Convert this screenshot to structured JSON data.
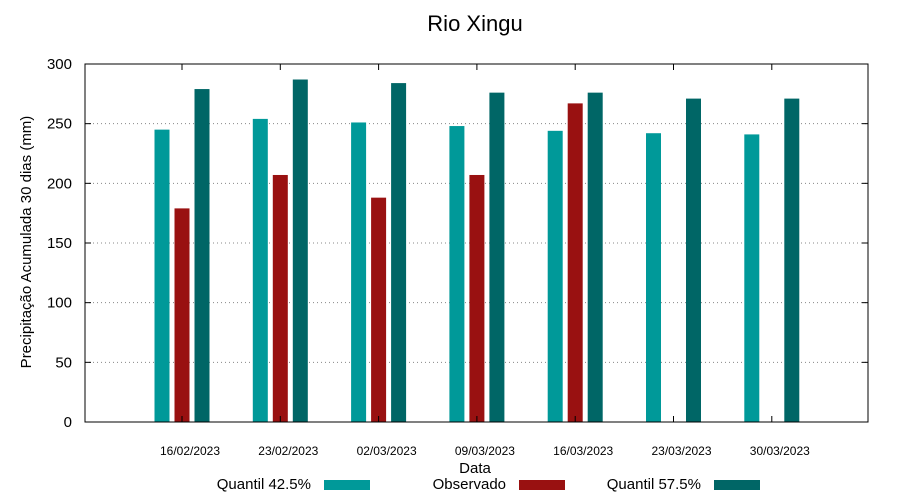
{
  "chart_data": {
    "type": "bar",
    "title": "Rio Xingu",
    "xlabel": "Data",
    "ylabel": "Precipitação Acumulada 30 dias (mm)",
    "ylim": [
      0,
      300
    ],
    "yticks": [
      0,
      50,
      100,
      150,
      200,
      250,
      300
    ],
    "grid": true,
    "legend_position": "bottom",
    "categories": [
      "16/02/2023",
      "23/02/2023",
      "02/03/2023",
      "09/03/2023",
      "16/03/2023",
      "23/03/2023",
      "30/03/2023"
    ],
    "series": [
      {
        "name": "Quantil 42.5%",
        "color": "#009999",
        "values": [
          245,
          254,
          251,
          248,
          244,
          242,
          241
        ]
      },
      {
        "name": "Observado",
        "color": "#991111",
        "values": [
          179,
          207,
          188,
          207,
          267,
          null,
          null
        ]
      },
      {
        "name": "Quantil 57.5%",
        "color": "#006666",
        "values": [
          279,
          287,
          284,
          276,
          276,
          271,
          271
        ]
      }
    ]
  }
}
